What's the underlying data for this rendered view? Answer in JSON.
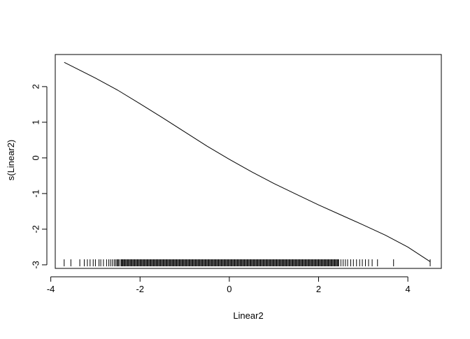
{
  "chart_data": {
    "type": "line",
    "title": "",
    "xlabel": "Linear2",
    "ylabel": "s(Linear2)",
    "xlim": [
      -3.9,
      4.75
    ],
    "ylim": [
      -3.1,
      2.9
    ],
    "x_ticks": [
      -4,
      -2,
      0,
      2,
      4
    ],
    "x_tick_labels": [
      "-4",
      "-2",
      "0",
      "2",
      "4"
    ],
    "y_ticks": [
      -3,
      -2,
      -1,
      0,
      1,
      2
    ],
    "y_tick_labels": [
      "-3",
      "-2",
      "-1",
      "0",
      "1",
      "2"
    ],
    "grid": false,
    "legend": "none",
    "series": [
      {
        "x": [
          -3.7,
          -3.0,
          -2.5,
          -2.0,
          -1.5,
          -1.0,
          -0.5,
          0.0,
          0.5,
          1.0,
          1.5,
          2.0,
          2.5,
          3.0,
          3.5,
          4.0,
          4.5
        ],
        "y": [
          2.68,
          2.24,
          1.9,
          1.52,
          1.13,
          0.73,
          0.33,
          -0.04,
          -0.39,
          -0.72,
          -1.02,
          -1.32,
          -1.6,
          -1.88,
          -2.17,
          -2.5,
          -2.91
        ],
        "color": "#000000"
      }
    ],
    "rug": {
      "color": "#000000",
      "sparse": [
        -3.7,
        -3.55,
        -3.35,
        -3.25,
        -3.18,
        -3.12,
        -3.05,
        -3.0,
        -2.92,
        -2.88,
        -2.82,
        -2.75,
        -2.7,
        -2.66,
        -2.62,
        -2.58,
        -2.55,
        -2.52,
        -2.5,
        -2.48,
        -2.45,
        -2.42,
        -2.4,
        2.45,
        2.5,
        2.55,
        2.6,
        2.65,
        2.72,
        2.78,
        2.85,
        2.92,
        2.98,
        3.05,
        3.12,
        3.2,
        3.32,
        3.68,
        4.5
      ],
      "dense_range": [
        -2.4,
        2.45
      ]
    }
  }
}
